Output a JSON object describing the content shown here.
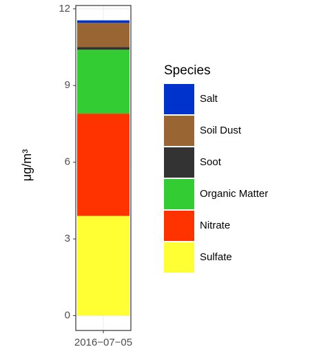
{
  "chart_data": {
    "type": "stacked_bar",
    "ylabel": "μg/m³",
    "legend_title": "Species",
    "categories": [
      "2016−07−05"
    ],
    "series": [
      {
        "name": "Sulfate",
        "color": "#ffff33",
        "values": [
          3.9
        ]
      },
      {
        "name": "Nitrate",
        "color": "#ff3300",
        "values": [
          4.0
        ]
      },
      {
        "name": "Organic Matter",
        "color": "#33cc33",
        "values": [
          2.5
        ]
      },
      {
        "name": "Soot",
        "color": "#333333",
        "values": [
          0.1
        ]
      },
      {
        "name": "Soil Dust",
        "color": "#996633",
        "values": [
          0.95
        ]
      },
      {
        "name": "Salt",
        "color": "#0033cc",
        "values": [
          0.1
        ]
      }
    ],
    "ylim": [
      -0.58,
      12.13
    ],
    "yticks": [
      0,
      3,
      6,
      9,
      12
    ],
    "grid": true,
    "legend": "right"
  }
}
